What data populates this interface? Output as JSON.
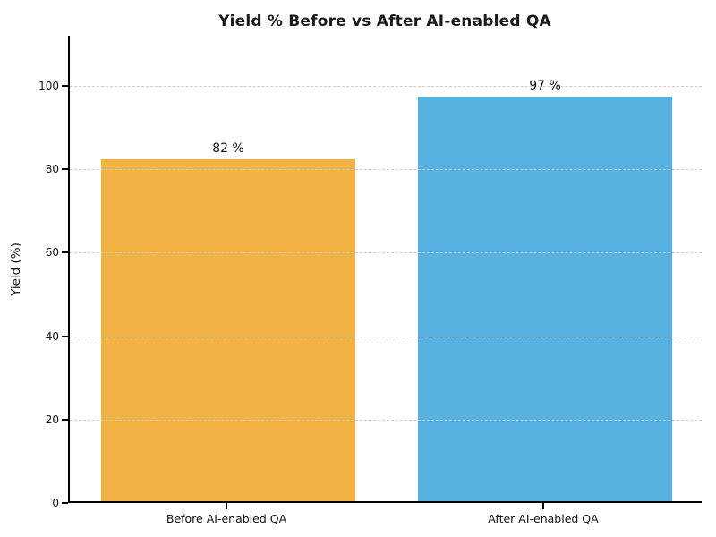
{
  "chart_data": {
    "type": "bar",
    "title": "Yield % Before vs After AI-enabled QA",
    "categories": [
      "Before AI-enabled QA",
      "After AI-enabled QA"
    ],
    "values": [
      82,
      97
    ],
    "bar_value_labels": [
      "82 %",
      "97 %"
    ],
    "bar_colors": [
      "#F2B344",
      "#57B1E1"
    ],
    "xlabel": "",
    "ylabel": "Yield (%)",
    "ylim": [
      0,
      112
    ],
    "yticks": [
      0,
      20,
      40,
      60,
      80,
      100
    ],
    "grid": "horizontal dashed, drawn over bars",
    "gridline_color": "#cccccc",
    "legend_position": "none",
    "spines": [
      "left",
      "bottom"
    ],
    "bar_width_fraction": 0.8
  }
}
